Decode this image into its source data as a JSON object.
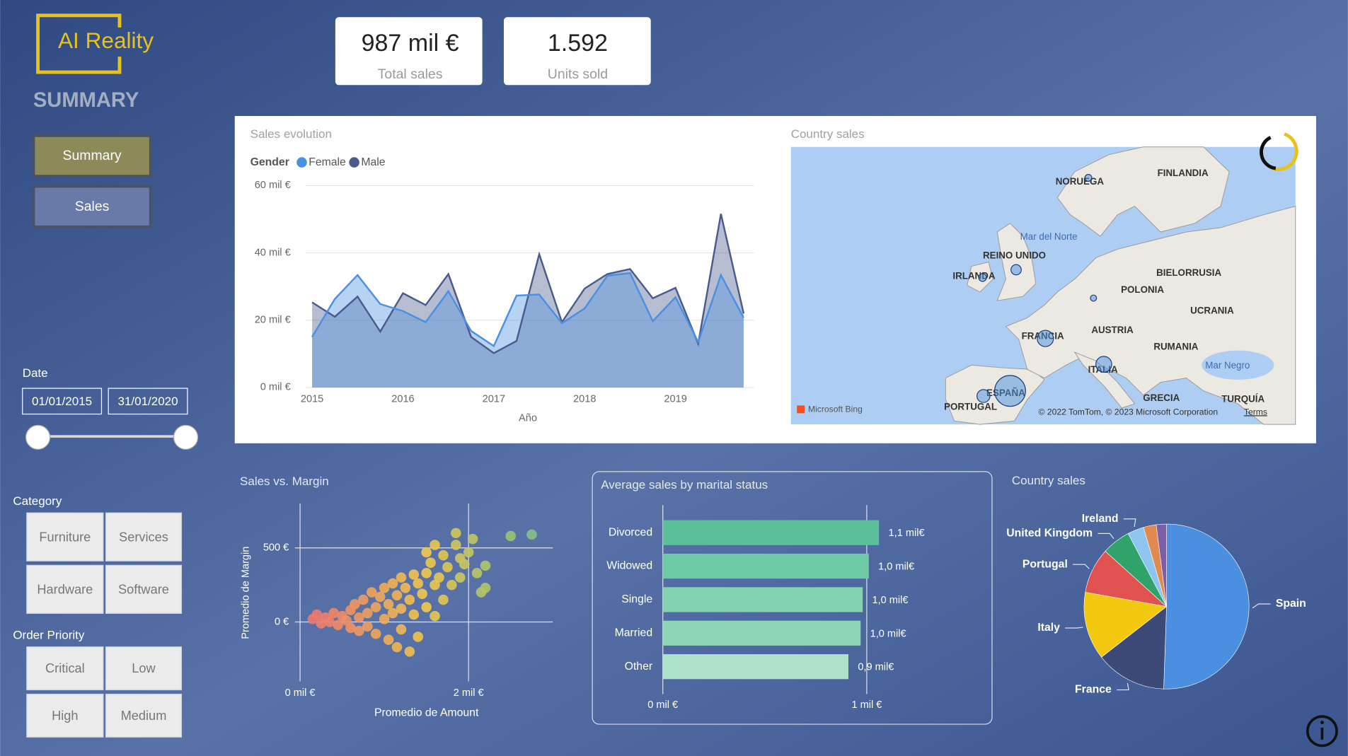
{
  "logo": "AI Reality",
  "page_title": "SUMMARY",
  "nav": [
    "Summary",
    "Sales"
  ],
  "kpis": [
    {
      "value": "987 mil €",
      "label": "Total sales"
    },
    {
      "value": "1.592",
      "label": "Units sold"
    }
  ],
  "filters": {
    "date": {
      "label": "Date",
      "start": "01/01/2015",
      "end": "31/01/2020"
    },
    "category": {
      "label": "Category",
      "options": [
        "Furniture",
        "Services",
        "Hardware",
        "Software"
      ]
    },
    "order_priority": {
      "label": "Order Priority",
      "options": [
        "Critical",
        "Low",
        "High",
        "Medium"
      ]
    }
  },
  "charts": {
    "sales_evolution": {
      "type": "area",
      "title": "Sales evolution",
      "legend_title": "Gender",
      "x_label": "Año",
      "x": [
        2015,
        2015.25,
        2015.5,
        2015.75,
        2016,
        2016.25,
        2016.5,
        2016.75,
        2017,
        2017.25,
        2017.5,
        2017.75,
        2018,
        2018.25,
        2018.5,
        2018.75,
        2019,
        2019.25,
        2019.5,
        2019.75
      ],
      "xlim": [
        2015,
        2019.75
      ],
      "xticks": [
        2015,
        2016,
        2017,
        2018,
        2019
      ],
      "ylim": [
        0,
        60
      ],
      "yticks": [
        {
          "value": 0,
          "label": "0 mil €"
        },
        {
          "value": 20,
          "label": "20 mil €"
        },
        {
          "value": 40,
          "label": "40 mil €"
        },
        {
          "value": 60,
          "label": "60 mil €"
        }
      ],
      "grid": true,
      "series": [
        {
          "name": "Female",
          "color": "#4a90e2",
          "values": [
            15,
            26.3,
            33.4,
            24.8,
            22.7,
            19.4,
            28.6,
            16.8,
            12.3,
            27.3,
            27.6,
            19.1,
            23.5,
            33.2,
            34,
            19.7,
            26.8,
            13.5,
            33.4,
            20.7
          ]
        },
        {
          "name": "Male",
          "color": "#4b5a8c",
          "values": [
            25.3,
            21,
            27,
            16.6,
            28,
            24.5,
            33.7,
            15,
            10.2,
            13.8,
            39.6,
            19.4,
            29.4,
            33.7,
            35.2,
            26.5,
            29.6,
            13,
            51.6,
            22
          ]
        }
      ]
    },
    "country_map": {
      "type": "map",
      "title": "Country sales",
      "labels": [
        "Mar del Norte",
        "NORUEGA",
        "FINLANDIA",
        "REINO UNIDO",
        "IRLANDA",
        "BIELORRUSIA",
        "POLONIA",
        "UCRANIA",
        "FRANCIA",
        "AUSTRIA",
        "RUMANIA",
        "ITALIA",
        "Mar Negro",
        "ESPAÑA",
        "PORTUGAL",
        "GRECIA",
        "TURQUÍA"
      ],
      "provider": "Microsoft Bing",
      "attribution": "© 2022 TomTom, © 2023 Microsoft Corporation",
      "terms": "Terms"
    },
    "sales_vs_margin": {
      "type": "scatter",
      "title": "Sales vs. Margin",
      "x_label": "Promedio de Amount",
      "y_label": "Promedio de Margin",
      "xlim": [
        0,
        3
      ],
      "xticks": [
        {
          "value": 0,
          "label": "0 mil €"
        },
        {
          "value": 2,
          "label": "2 mil €"
        }
      ],
      "ylim": [
        -400,
        800
      ],
      "yticks": [
        {
          "value": 0,
          "label": "0 €"
        },
        {
          "value": 500,
          "label": "500 €"
        }
      ],
      "grid": true,
      "color_scale": [
        "#ee6e73",
        "#f2c94c",
        "#6cc08b"
      ],
      "x": [
        0.15,
        0.2,
        0.25,
        0.3,
        0.35,
        0.4,
        0.45,
        0.5,
        0.55,
        0.6,
        0.6,
        0.65,
        0.7,
        0.7,
        0.75,
        0.8,
        0.8,
        0.85,
        0.9,
        0.9,
        0.95,
        1.0,
        1.0,
        1.05,
        1.05,
        1.1,
        1.1,
        1.15,
        1.15,
        1.2,
        1.2,
        1.2,
        1.25,
        1.3,
        1.3,
        1.35,
        1.35,
        1.4,
        1.4,
        1.45,
        1.5,
        1.5,
        1.55,
        1.6,
        1.6,
        1.65,
        1.7,
        1.7,
        1.75,
        1.8,
        1.85,
        1.9,
        1.95,
        2.0,
        1.9,
        2.1,
        2.15,
        2.2,
        2.05,
        1.85,
        2.5,
        2.75,
        1.6,
        1.5,
        2.2
      ],
      "y": [
        20,
        50,
        -10,
        30,
        0,
        60,
        -20,
        40,
        10,
        80,
        -40,
        120,
        30,
        -60,
        150,
        60,
        -30,
        200,
        100,
        -80,
        170,
        230,
        20,
        -120,
        120,
        260,
        60,
        -170,
        180,
        300,
        90,
        -50,
        230,
        -200,
        150,
        320,
        50,
        260,
        -100,
        190,
        100,
        330,
        400,
        250,
        40,
        300,
        450,
        150,
        370,
        250,
        520,
        430,
        390,
        470,
        300,
        330,
        200,
        380,
        560,
        600,
        580,
        590,
        520,
        470,
        230
      ]
    },
    "marital_status": {
      "type": "hbar",
      "title": "Average sales by marital status",
      "categories": [
        "Divorced",
        "Widowed",
        "Single",
        "Married",
        "Other"
      ],
      "values": [
        1.06,
        1.01,
        0.98,
        0.97,
        0.91
      ],
      "value_labels": [
        "1,1 mil€",
        "1,0 mil€",
        "1,0 mil€",
        "1,0 mil€",
        "0,9 mil€"
      ],
      "colors": [
        "#5cc19b",
        "#6ccaa5",
        "#85d2b2",
        "#8dd5b7",
        "#ade2ca"
      ],
      "xlim": [
        0,
        1.45
      ],
      "xticks": [
        {
          "value": 0,
          "label": "0 mil €"
        },
        {
          "value": 1,
          "label": "1 mil €"
        }
      ],
      "grid": true
    },
    "country_pie": {
      "type": "pie",
      "title": "Country sales",
      "categories": [
        "Spain",
        "France",
        "Italy",
        "Portugal",
        "United Kingdom",
        "Ireland",
        null,
        null
      ],
      "values": [
        50.5,
        13.9,
        13.3,
        8.9,
        5.6,
        3.2,
        2.5,
        2
      ],
      "colors": [
        "#4a8fe0",
        "#3d4a78",
        "#f2c811",
        "#e0524f",
        "#2fa36b",
        "#8ec4f0",
        "#e08a4f",
        "#7b5ea7"
      ]
    }
  }
}
